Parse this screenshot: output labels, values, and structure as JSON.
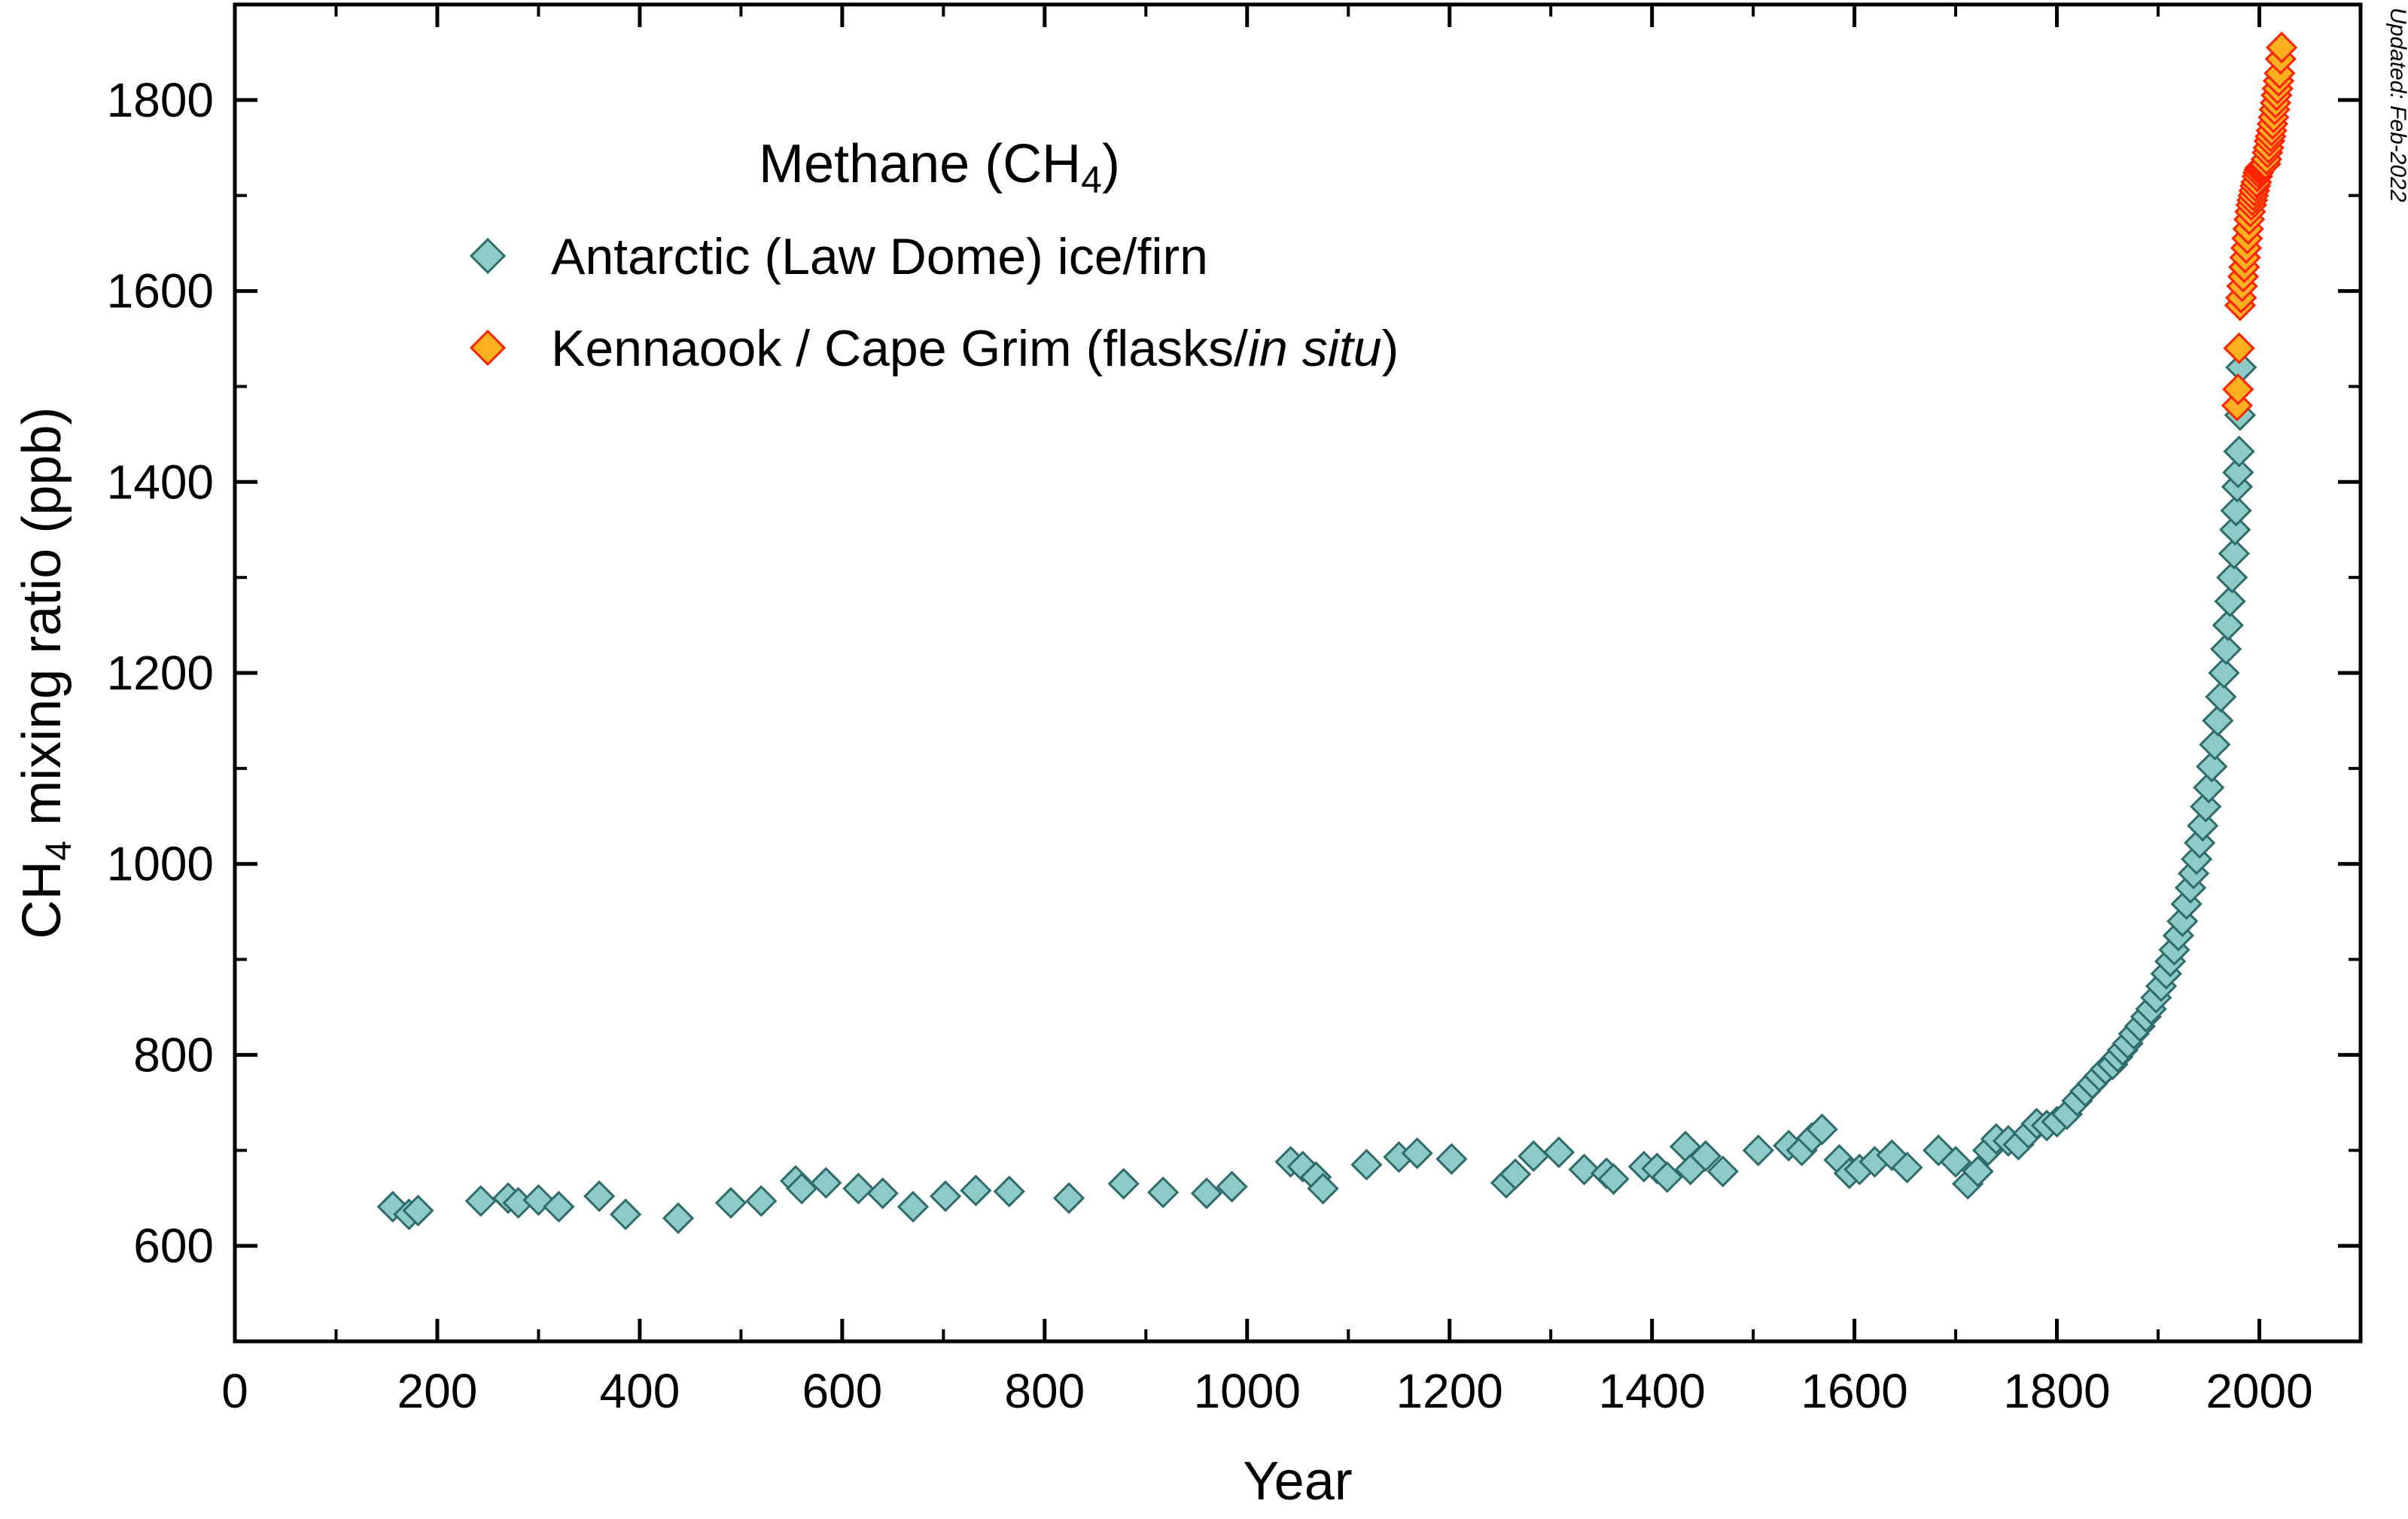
{
  "chart_data": {
    "type": "scatter",
    "title": "Methane (CH",
    "title_subscript": "4",
    "title_suffix": ")",
    "updated_note": "Updated: Feb-2022",
    "xlabel": "Year",
    "ylabel_prefix": "CH",
    "ylabel_subscript": "4",
    "ylabel_suffix": " mixing ratio (ppb)",
    "xlim": [
      0,
      2100
    ],
    "ylim": [
      500,
      1900
    ],
    "xticks": [
      0,
      200,
      400,
      600,
      800,
      1000,
      1200,
      1400,
      1600,
      1800,
      2000
    ],
    "yticks": [
      600,
      800,
      1000,
      1200,
      1400,
      1600,
      1800
    ],
    "legend_placement": "top-left",
    "colors": {
      "law_dome_fill": "#8ecbc8",
      "law_dome_stroke": "#2e6b6b",
      "cape_grim_fill": "#ffb020",
      "cape_grim_stroke": "#ff2200"
    },
    "series": [
      {
        "name": "Antarctic (Law Dome) ice/firn",
        "points": [
          [
            156,
            641
          ],
          [
            172,
            633
          ],
          [
            181,
            637
          ],
          [
            243,
            647
          ],
          [
            270,
            650
          ],
          [
            280,
            645
          ],
          [
            300,
            648
          ],
          [
            320,
            641
          ],
          [
            360,
            652
          ],
          [
            386,
            633
          ],
          [
            438,
            629
          ],
          [
            490,
            645
          ],
          [
            520,
            647
          ],
          [
            554,
            668
          ],
          [
            560,
            660
          ],
          [
            584,
            666
          ],
          [
            616,
            660
          ],
          [
            640,
            655
          ],
          [
            670,
            641
          ],
          [
            702,
            652
          ],
          [
            732,
            658
          ],
          [
            765,
            657
          ],
          [
            824,
            650
          ],
          [
            878,
            665
          ],
          [
            917,
            656
          ],
          [
            960,
            655
          ],
          [
            985,
            662
          ],
          [
            1043,
            688
          ],
          [
            1055,
            683
          ],
          [
            1068,
            672
          ],
          [
            1075,
            660
          ],
          [
            1118,
            685
          ],
          [
            1150,
            693
          ],
          [
            1168,
            697
          ],
          [
            1202,
            691
          ],
          [
            1256,
            666
          ],
          [
            1265,
            675
          ],
          [
            1283,
            694
          ],
          [
            1308,
            698
          ],
          [
            1333,
            680
          ],
          [
            1355,
            676
          ],
          [
            1362,
            670
          ],
          [
            1392,
            683
          ],
          [
            1405,
            681
          ],
          [
            1415,
            672
          ],
          [
            1433,
            704
          ],
          [
            1438,
            680
          ],
          [
            1453,
            694
          ],
          [
            1470,
            678
          ],
          [
            1505,
            700
          ],
          [
            1535,
            705
          ],
          [
            1548,
            700
          ],
          [
            1558,
            713
          ],
          [
            1568,
            722
          ],
          [
            1585,
            690
          ],
          [
            1595,
            676
          ],
          [
            1605,
            680
          ],
          [
            1620,
            688
          ],
          [
            1637,
            695
          ],
          [
            1652,
            682
          ],
          [
            1683,
            700
          ],
          [
            1700,
            688
          ],
          [
            1712,
            665
          ],
          [
            1722,
            678
          ],
          [
            1732,
            700
          ],
          [
            1740,
            712
          ],
          [
            1752,
            710
          ],
          [
            1762,
            706
          ],
          [
            1772,
            718
          ],
          [
            1780,
            728
          ],
          [
            1790,
            726
          ],
          [
            1800,
            730
          ],
          [
            1810,
            738
          ],
          [
            1820,
            752
          ],
          [
            1828,
            762
          ],
          [
            1835,
            770
          ],
          [
            1842,
            778
          ],
          [
            1848,
            785
          ],
          [
            1855,
            790
          ],
          [
            1860,
            798
          ],
          [
            1865,
            805
          ],
          [
            1870,
            812
          ],
          [
            1876,
            822
          ],
          [
            1882,
            830
          ],
          [
            1888,
            840
          ],
          [
            1893,
            848
          ],
          [
            1898,
            860
          ],
          [
            1903,
            872
          ],
          [
            1908,
            885
          ],
          [
            1912,
            898
          ],
          [
            1916,
            910
          ],
          [
            1920,
            925
          ],
          [
            1924,
            940
          ],
          [
            1928,
            958
          ],
          [
            1932,
            975
          ],
          [
            1935,
            990
          ],
          [
            1938,
            1005
          ],
          [
            1941,
            1022
          ],
          [
            1944,
            1040
          ],
          [
            1947,
            1060
          ],
          [
            1950,
            1080
          ],
          [
            1953,
            1102
          ],
          [
            1956,
            1125
          ],
          [
            1959,
            1150
          ],
          [
            1962,
            1175
          ],
          [
            1965,
            1200
          ],
          [
            1967,
            1225
          ],
          [
            1969,
            1250
          ],
          [
            1971,
            1275
          ],
          [
            1973,
            1300
          ],
          [
            1975,
            1325
          ],
          [
            1976,
            1350
          ],
          [
            1977,
            1370
          ],
          [
            1978,
            1395
          ],
          [
            1979,
            1410
          ],
          [
            1980,
            1432
          ],
          [
            1981,
            1470
          ],
          [
            1982,
            1520
          ]
        ]
      },
      {
        "name": "Kennaook / Cape Grim (flasks/in situ)",
        "name_parts": [
          "Kennaook / Cape Grim (flasks/",
          "in situ",
          ")"
        ],
        "points": [
          [
            1978,
            1480
          ],
          [
            1979,
            1497
          ],
          [
            1980,
            1540
          ],
          [
            1981,
            1585
          ],
          [
            1982,
            1593
          ],
          [
            1983,
            1605
          ],
          [
            1984,
            1615
          ],
          [
            1985,
            1625
          ],
          [
            1986,
            1635
          ],
          [
            1987,
            1645
          ],
          [
            1988,
            1655
          ],
          [
            1989,
            1665
          ],
          [
            1990,
            1675
          ],
          [
            1991,
            1683
          ],
          [
            1992,
            1690
          ],
          [
            1993,
            1695
          ],
          [
            1994,
            1700
          ],
          [
            1995,
            1705
          ],
          [
            1996,
            1710
          ],
          [
            1997,
            1714
          ],
          [
            1998,
            1720
          ],
          [
            1999,
            1724
          ],
          [
            2000,
            1727
          ],
          [
            2001,
            1729
          ],
          [
            2002,
            1730
          ],
          [
            2003,
            1731
          ],
          [
            2004,
            1731
          ],
          [
            2005,
            1732
          ],
          [
            2006,
            1733
          ],
          [
            2007,
            1738
          ],
          [
            2008,
            1745
          ],
          [
            2009,
            1750
          ],
          [
            2010,
            1757
          ],
          [
            2011,
            1762
          ],
          [
            2012,
            1768
          ],
          [
            2013,
            1775
          ],
          [
            2014,
            1782
          ],
          [
            2015,
            1790
          ],
          [
            2016,
            1797
          ],
          [
            2017,
            1805
          ],
          [
            2018,
            1812
          ],
          [
            2019,
            1820
          ],
          [
            2020,
            1828
          ],
          [
            2021,
            1843
          ],
          [
            2022,
            1855
          ]
        ]
      }
    ]
  }
}
